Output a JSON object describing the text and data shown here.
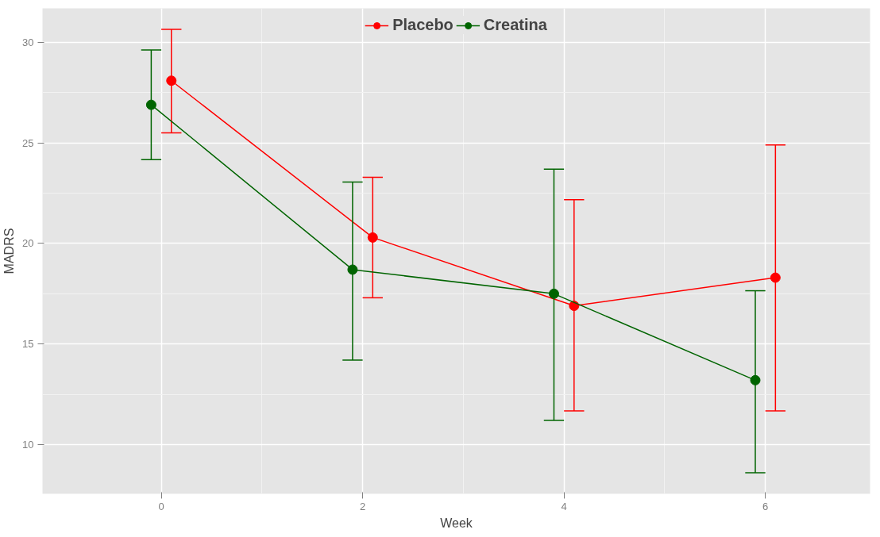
{
  "chart_data": {
    "type": "line",
    "xlabel": "Week",
    "ylabel": "MADRS",
    "xlim": [
      -1.18,
      7.04
    ],
    "ylim": [
      7.55,
      31.7
    ],
    "xticks": [
      0,
      2,
      4,
      6
    ],
    "yticks": [
      10,
      15,
      20,
      25,
      30
    ],
    "grid": true,
    "legend": "top",
    "marker": "circle",
    "line_style": "solid",
    "series": [
      {
        "name": "Placebo",
        "color": "#ff0000",
        "x": [
          0.1,
          2.1,
          4.1,
          6.1
        ],
        "values": [
          28.1,
          20.3,
          16.9,
          18.3
        ],
        "errors": [
          [
            25.5,
            30.65
          ],
          [
            17.3,
            23.29
          ],
          [
            11.67,
            22.18
          ],
          [
            11.67,
            24.9
          ]
        ]
      },
      {
        "name": "Creatina",
        "color": "#006400",
        "x": [
          -0.1,
          1.9,
          3.9,
          5.9
        ],
        "values": [
          26.9,
          18.7,
          17.5,
          13.2
        ],
        "errors": [
          [
            24.17,
            29.63
          ],
          [
            14.2,
            23.06
          ],
          [
            11.2,
            23.7
          ],
          [
            8.6,
            17.65
          ]
        ]
      }
    ]
  }
}
